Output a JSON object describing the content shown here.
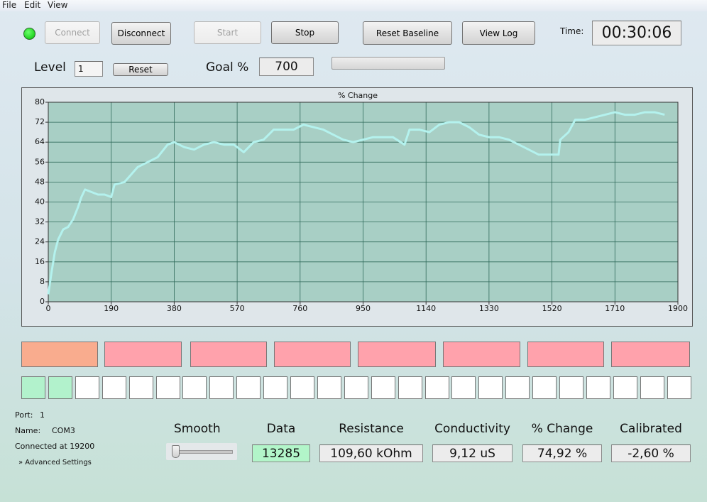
{
  "menu": [
    "File",
    "Edit",
    "View"
  ],
  "toolbar": {
    "connect": "Connect",
    "disconnect": "Disconnect",
    "start": "Start",
    "stop": "Stop",
    "reset_baseline": "Reset Baseline",
    "view_log": "View Log",
    "time_label": "Time:",
    "time": "00:30:06"
  },
  "level": {
    "label": "Level",
    "value": "1",
    "reset": "Reset"
  },
  "goal": {
    "label": "Goal %",
    "value": "700"
  },
  "chart_data": {
    "type": "line",
    "title": "% Change",
    "color": "#b4f2ee",
    "x": [
      0,
      10,
      20,
      30,
      45,
      60,
      75,
      90,
      100,
      111,
      130,
      150,
      170,
      190,
      200,
      230,
      250,
      270,
      300,
      330,
      360,
      380,
      410,
      440,
      470,
      500,
      530,
      560,
      590,
      620,
      650,
      680,
      710,
      740,
      770,
      800,
      830,
      860,
      890,
      920,
      950,
      980,
      1010,
      1040,
      1075,
      1090,
      1120,
      1150,
      1180,
      1210,
      1240,
      1270,
      1300,
      1330,
      1360,
      1390,
      1420,
      1450,
      1480,
      1510,
      1540,
      1545,
      1570,
      1590,
      1620,
      1650,
      1680,
      1710,
      1740,
      1770,
      1800,
      1830,
      1860
    ],
    "values": [
      3,
      12,
      20,
      25,
      29,
      30,
      33,
      38,
      42,
      45,
      44,
      43,
      43,
      42,
      47,
      48,
      51,
      54,
      56,
      58,
      63,
      64,
      62,
      61,
      63,
      64,
      63,
      63,
      60,
      64,
      65,
      69,
      69,
      69,
      71,
      70,
      69,
      67,
      65,
      64,
      65,
      66,
      66,
      66,
      63,
      69,
      69,
      68,
      71,
      72,
      72,
      70,
      67,
      66,
      66,
      65,
      63,
      61,
      59,
      59,
      59,
      65,
      68,
      73,
      73,
      74,
      75,
      76,
      75,
      75,
      76,
      76,
      75
    ],
    "xlim": [
      0,
      1900
    ],
    "xticks": [
      0,
      190,
      380,
      570,
      760,
      950,
      1140,
      1330,
      1520,
      1710,
      1900
    ],
    "ylim": [
      0,
      80
    ],
    "yticks": [
      0,
      8,
      16,
      24,
      32,
      40,
      48,
      56,
      64,
      72,
      80
    ],
    "grid": true
  },
  "connection": {
    "port_label": "Port:",
    "port": "1",
    "name_label": "Name:",
    "name": "COM3",
    "status": "Connected at 19200",
    "advanced": "Advanced Settings"
  },
  "readouts": {
    "smooth": "Smooth",
    "items": [
      {
        "label": "Data",
        "value": "13285"
      },
      {
        "label": "Resistance",
        "value": "109,60 kOhm"
      },
      {
        "label": "Conductivity",
        "value": "9,12 uS"
      },
      {
        "label": "% Change",
        "value": "74,92 %"
      },
      {
        "label": "Calibrated",
        "value": "-2,60 %"
      }
    ]
  }
}
